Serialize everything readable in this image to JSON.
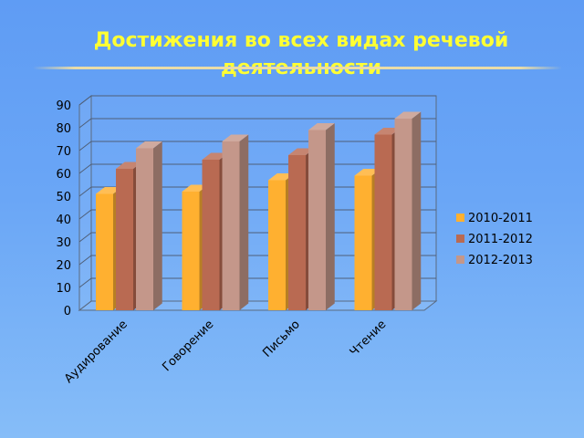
{
  "slide": {
    "title": "Достижения во всех видах речевой деятельности"
  },
  "chart_data": {
    "type": "bar",
    "title": "",
    "xlabel": "",
    "ylabel": "",
    "categories": [
      "Аудирование",
      "Говорение",
      "Письмо",
      "Чтение"
    ],
    "series": [
      {
        "name": "2010-2011",
        "values": [
          51,
          52,
          57,
          59
        ],
        "color": "#ffb030"
      },
      {
        "name": "2011-2012",
        "values": [
          62,
          66,
          68,
          77
        ],
        "color": "#b96a52"
      },
      {
        "name": "2012-2013",
        "values": [
          71,
          74,
          79,
          84
        ],
        "color": "#c4978a"
      }
    ],
    "ylim": [
      0,
      90
    ],
    "yticks": [
      0,
      10,
      20,
      30,
      40,
      50,
      60,
      70,
      80,
      90
    ],
    "grid": true,
    "legend": "right",
    "three_d": true
  }
}
